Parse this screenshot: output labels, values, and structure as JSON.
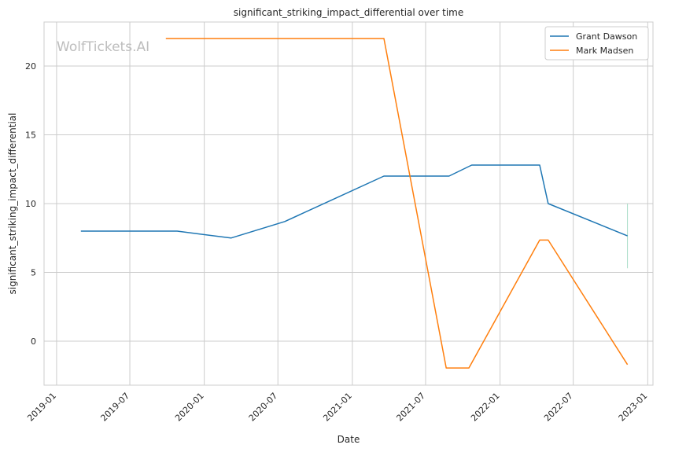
{
  "chart_data": {
    "type": "line",
    "title": "significant_striking_impact_differential over time",
    "xlabel": "Date",
    "ylabel": "significant_striking_impact_differential",
    "watermark": "WolfTickets.AI",
    "xlim": [
      "2018-12-01",
      "2023-01-14"
    ],
    "ylim": [
      -3.2,
      23.2
    ],
    "x_ticks": [
      "2019-01-01",
      "2019-07-01",
      "2020-01-01",
      "2020-07-01",
      "2021-01-01",
      "2021-07-01",
      "2022-01-01",
      "2022-07-01",
      "2023-01-01"
    ],
    "x_tick_labels": [
      "2019-01",
      "2019-07",
      "2020-01",
      "2020-07",
      "2021-01",
      "2021-07",
      "2022-01",
      "2022-07",
      "2023-01"
    ],
    "y_ticks": [
      0,
      5,
      10,
      15,
      20
    ],
    "y_tick_labels": [
      "0",
      "5",
      "10",
      "15",
      "20"
    ],
    "grid": true,
    "legend_position": "top-right",
    "series": [
      {
        "name": "Grant Dawson",
        "color": "#1f77b4",
        "points": [
          {
            "x": "2019-03-02",
            "y": 8.0
          },
          {
            "x": "2019-10-26",
            "y": 8.0
          },
          {
            "x": "2020-03-07",
            "y": 7.5
          },
          {
            "x": "2020-07-18",
            "y": 8.7
          },
          {
            "x": "2021-03-20",
            "y": 12.0
          },
          {
            "x": "2021-08-28",
            "y": 12.0
          },
          {
            "x": "2021-10-23",
            "y": 12.8
          },
          {
            "x": "2022-04-09",
            "y": 12.8
          },
          {
            "x": "2022-04-30",
            "y": 10.0
          },
          {
            "x": "2022-11-12",
            "y": 7.65
          }
        ]
      },
      {
        "name": "Mark Madsen",
        "color": "#ff7f0e",
        "points": [
          {
            "x": "2019-09-28",
            "y": 22.0
          },
          {
            "x": "2021-03-20",
            "y": 22.0
          },
          {
            "x": "2021-08-21",
            "y": -1.95
          },
          {
            "x": "2021-10-16",
            "y": -1.95
          },
          {
            "x": "2022-04-09",
            "y": 7.35
          },
          {
            "x": "2022-04-30",
            "y": 7.35
          },
          {
            "x": "2022-11-12",
            "y": -1.7
          }
        ]
      }
    ],
    "annotations": [
      {
        "type": "vertical-segment",
        "x": "2022-11-12",
        "y_range": [
          5.3,
          10.0
        ],
        "color": "#a8dcc6"
      }
    ]
  }
}
